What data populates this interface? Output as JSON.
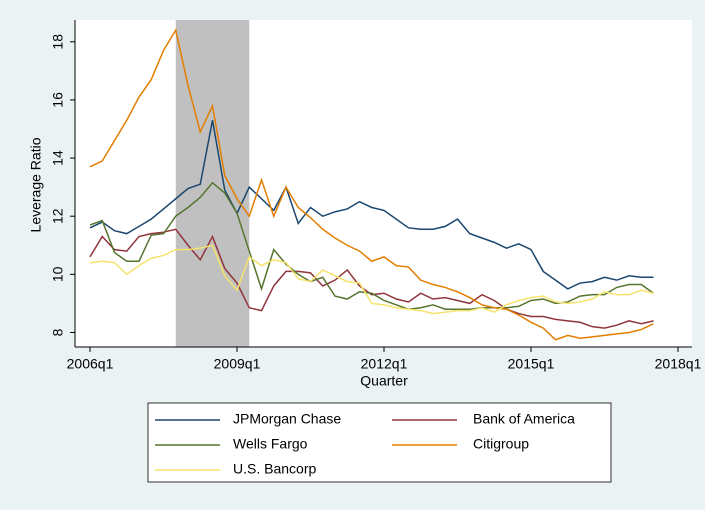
{
  "chart_data": {
    "type": "line",
    "x_label": "Quarter",
    "y_label": "Leverage Ratio",
    "x": [
      "2006q1",
      "2006q2",
      "2006q3",
      "2006q4",
      "2007q1",
      "2007q2",
      "2007q3",
      "2007q4",
      "2008q1",
      "2008q2",
      "2008q3",
      "2008q4",
      "2009q1",
      "2009q2",
      "2009q3",
      "2009q4",
      "2010q1",
      "2010q2",
      "2010q3",
      "2010q4",
      "2011q1",
      "2011q2",
      "2011q3",
      "2011q4",
      "2012q1",
      "2012q2",
      "2012q3",
      "2012q4",
      "2013q1",
      "2013q2",
      "2013q3",
      "2013q4",
      "2014q1",
      "2014q2",
      "2014q3",
      "2014q4",
      "2015q1",
      "2015q2",
      "2015q3",
      "2015q4",
      "2016q1",
      "2016q2",
      "2016q3",
      "2016q4",
      "2017q1",
      "2017q2",
      "2017q3"
    ],
    "xticks": [
      "2006q1",
      "2009q1",
      "2012q1",
      "2015q1",
      "2018q1"
    ],
    "ylim": [
      7.5,
      18.75
    ],
    "yticks": [
      8,
      10,
      12,
      14,
      16,
      18
    ],
    "recession": {
      "start": "2007q4",
      "end": "2009q2",
      "color": "#c0c0c0"
    },
    "legend": "bottom",
    "series": [
      {
        "name": "JPMorgan Chase",
        "color": "#1a476f",
        "values": [
          11.6,
          11.8,
          11.5,
          11.4,
          11.65,
          11.9,
          12.25,
          12.6,
          12.95,
          13.1,
          15.3,
          12.9,
          12.1,
          13.0,
          12.6,
          12.2,
          13.0,
          11.75,
          12.3,
          12.0,
          12.15,
          12.25,
          12.5,
          12.3,
          12.2,
          11.9,
          11.6,
          11.55,
          11.55,
          11.65,
          11.9,
          11.4,
          11.25,
          11.1,
          10.9,
          11.05,
          10.85,
          10.1,
          9.8,
          9.5,
          9.7,
          9.75,
          9.9,
          9.8,
          9.95,
          9.9,
          9.9
        ]
      },
      {
        "name": "Bank of America",
        "color": "#90353b",
        "values": [
          10.6,
          11.3,
          10.85,
          10.8,
          11.3,
          11.4,
          11.45,
          11.55,
          11.0,
          10.5,
          11.3,
          10.2,
          9.7,
          8.85,
          8.75,
          9.6,
          10.1,
          10.1,
          10.05,
          9.6,
          9.8,
          10.15,
          9.6,
          9.3,
          9.35,
          9.15,
          9.05,
          9.35,
          9.15,
          9.2,
          9.1,
          9.0,
          9.3,
          9.1,
          8.8,
          8.65,
          8.55,
          8.55,
          8.45,
          8.4,
          8.35,
          8.2,
          8.15,
          8.25,
          8.4,
          8.3,
          8.4
        ]
      },
      {
        "name": "Wells Fargo",
        "color": "#55752f",
        "values": [
          11.7,
          11.85,
          10.75,
          10.45,
          10.45,
          11.35,
          11.4,
          12.0,
          12.3,
          12.65,
          13.15,
          12.8,
          12.1,
          10.8,
          9.5,
          10.85,
          10.35,
          10.0,
          9.75,
          9.9,
          9.25,
          9.15,
          9.4,
          9.35,
          9.1,
          8.95,
          8.8,
          8.85,
          8.95,
          8.8,
          8.8,
          8.8,
          8.85,
          8.85,
          8.85,
          8.9,
          9.1,
          9.15,
          9.0,
          9.05,
          9.25,
          9.3,
          9.3,
          9.55,
          9.65,
          9.65,
          9.35
        ]
      },
      {
        "name": "Citigroup",
        "color": "#e37e00",
        "values": [
          13.7,
          13.9,
          14.6,
          15.3,
          16.1,
          16.7,
          17.7,
          18.4,
          16.5,
          14.9,
          15.8,
          13.4,
          12.6,
          12.0,
          13.25,
          12.0,
          13.0,
          12.3,
          11.95,
          11.55,
          11.25,
          11.0,
          10.8,
          10.45,
          10.6,
          10.3,
          10.25,
          9.8,
          9.65,
          9.55,
          9.4,
          9.2,
          8.95,
          8.85,
          8.8,
          8.6,
          8.35,
          8.15,
          7.75,
          7.9,
          7.8,
          7.85,
          7.9,
          7.95,
          8.0,
          8.1,
          8.3
        ]
      },
      {
        "name": "U.S. Bancorp",
        "color": "#f5e36b",
        "values": [
          10.4,
          10.45,
          10.4,
          10.0,
          10.3,
          10.55,
          10.65,
          10.85,
          10.85,
          10.9,
          11.0,
          9.95,
          9.45,
          10.6,
          10.3,
          10.5,
          10.4,
          9.85,
          9.75,
          10.15,
          9.95,
          9.75,
          9.7,
          9.0,
          8.95,
          8.85,
          8.8,
          8.75,
          8.65,
          8.7,
          8.75,
          8.75,
          8.85,
          8.7,
          8.95,
          9.1,
          9.2,
          9.25,
          9.05,
          9.0,
          9.05,
          9.15,
          9.4,
          9.3,
          9.3,
          9.45,
          9.35
        ]
      }
    ]
  }
}
